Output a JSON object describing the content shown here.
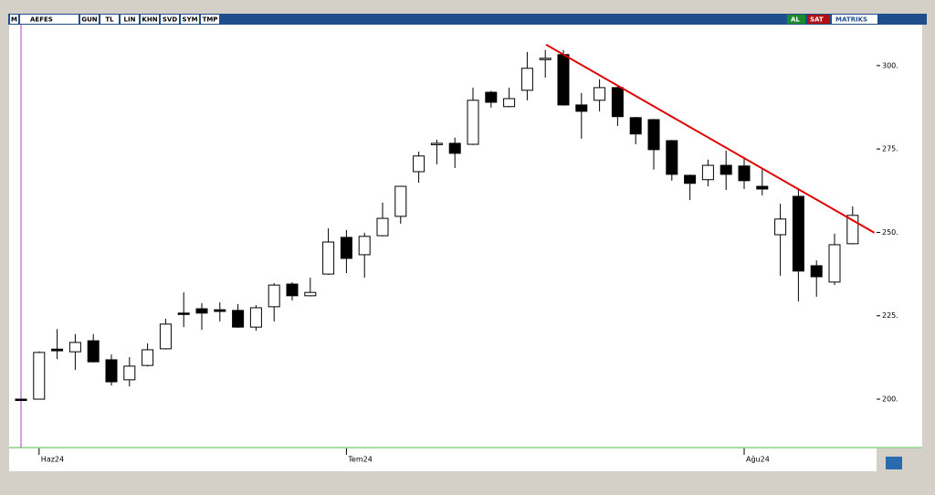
{
  "toolbar": {
    "logo": "M",
    "symbol": "AEFES",
    "buttons": [
      "GUN",
      "TL",
      "LIN",
      "KHN",
      "SVD",
      "SYM",
      "TMP"
    ],
    "buy": "AL",
    "sell": "SAT",
    "brand": "MATRIKS"
  },
  "chart_data": {
    "type": "candlestick",
    "categories": [
      null,
      "Haz24",
      null,
      null,
      null,
      null,
      null,
      null,
      null,
      null,
      null,
      null,
      null,
      null,
      null,
      null,
      null,
      null,
      "Tem24",
      null,
      null,
      null,
      null,
      null,
      null,
      null,
      null,
      null,
      null,
      null,
      null,
      null,
      null,
      null,
      null,
      null,
      null,
      null,
      null,
      null,
      "Ağu24",
      null,
      null,
      null,
      null,
      null,
      null
    ],
    "open": [
      200,
      200,
      215,
      214.2,
      217.5,
      211.8,
      205.8,
      210.1,
      215.1,
      225.8,
      227.1,
      226.8,
      226.6,
      221.6,
      227.7,
      234.5,
      231,
      237.5,
      248.5,
      243.3,
      249,
      254.8,
      268.2,
      276.7,
      276.7,
      276.4,
      292,
      287.7,
      292.6,
      302.2,
      303.3,
      288.2,
      289.6,
      293.4,
      284.4,
      283.8,
      277.5,
      267.1,
      265.8,
      270.1,
      269.9,
      263.8,
      249.3,
      260.8,
      240,
      235.1,
      246.6
    ],
    "high": [
      200,
      214.3,
      221,
      219.5,
      219.5,
      213.4,
      212.6,
      216.7,
      224.1,
      232,
      228.8,
      229,
      228.5,
      228.2,
      234.8,
      235.1,
      236.4,
      251.2,
      250.7,
      249.9,
      258.9,
      263.8,
      274.2,
      277.8,
      278.4,
      293.4,
      292.4,
      293.4,
      304.1,
      304.7,
      304.7,
      291.8,
      295.9,
      293.8,
      284.6,
      284,
      277.7,
      267.3,
      271.8,
      274.5,
      272.6,
      269,
      258.6,
      263.3,
      241.6,
      249.6,
      257.8
    ],
    "low": [
      199.6,
      200,
      212,
      208.8,
      211,
      204.1,
      203.8,
      209.8,
      214.9,
      221.6,
      220.8,
      223.3,
      221.4,
      220.5,
      223.3,
      229.6,
      230.8,
      237.3,
      237.8,
      236.4,
      248.8,
      252.6,
      264.9,
      270.4,
      269.3,
      276.2,
      287.4,
      287.5,
      289.6,
      296.4,
      288,
      278.1,
      286.3,
      281.9,
      276.4,
      268.8,
      265.5,
      259.7,
      263.8,
      262.7,
      263,
      261.1,
      237,
      229.3,
      230.7,
      234.2,
      246.4
    ],
    "close": [
      199.6,
      214,
      214.5,
      217,
      211.2,
      205.2,
      209.9,
      214.8,
      222.5,
      225.5,
      225.8,
      226.3,
      221.6,
      227.4,
      234.2,
      231,
      232,
      247.1,
      242.2,
      248.8,
      254.2,
      263.8,
      272.9,
      276.7,
      273.7,
      289.6,
      289,
      290.1,
      299.2,
      302.2,
      288.2,
      286.3,
      293.4,
      284.7,
      279.5,
      274.8,
      267.4,
      264.7,
      270.1,
      267.4,
      265.5,
      263,
      254,
      238.4,
      236.7,
      246.3,
      255.1
    ],
    "up_color": "#ffffff",
    "down_color": "#000000",
    "trendline": {
      "x": [
        29.04,
        47.2
      ],
      "values": [
        306.3,
        249.9
      ],
      "color": "#e00000"
    },
    "ylim": [
      185.5,
      312
    ],
    "yticks": [
      {
        "value": 200,
        "label": "200."
      },
      {
        "value": 225,
        "label": "225."
      },
      {
        "value": 250,
        "label": "250."
      },
      {
        "value": 275,
        "label": "275."
      },
      {
        "value": 300,
        "label": "300."
      }
    ]
  }
}
